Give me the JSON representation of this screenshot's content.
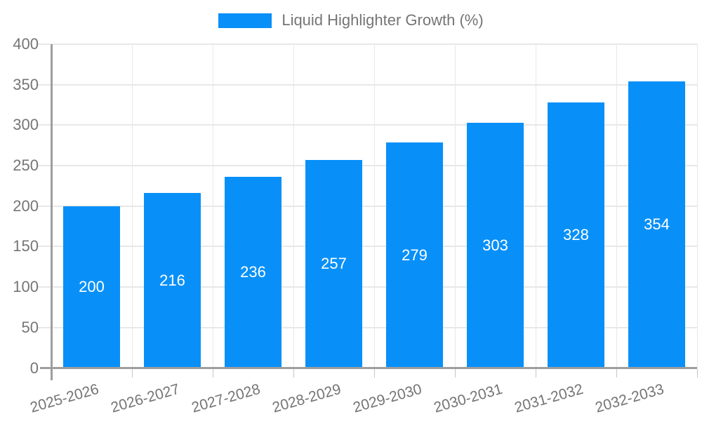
{
  "chart_data": {
    "type": "bar",
    "title": "",
    "legend": {
      "position": "top",
      "label": "Liquid Highlighter Growth (%)"
    },
    "categories": [
      "2025-2026",
      "2026-2027",
      "2027-2028",
      "2028-2029",
      "2029-2030",
      "2030-2031",
      "2031-2032",
      "2032-2033"
    ],
    "series": [
      {
        "name": "Liquid Highlighter Growth (%)",
        "values": [
          200,
          216,
          236,
          257,
          279,
          303,
          328,
          354
        ],
        "color": "#0890f8"
      }
    ],
    "xlabel": "",
    "ylabel": "",
    "ylim": [
      0,
      400
    ],
    "yticks": [
      0,
      50,
      100,
      150,
      200,
      250,
      300,
      350,
      400
    ],
    "grid": true,
    "value_labels_position": "inside-center",
    "value_label_color": "#ffffff"
  },
  "style": {
    "background": "#ffffff",
    "axis_color": "#9e9e9e",
    "grid_color": "#e8e8e8",
    "minor_tick_color": "#c6c6c6",
    "tick_label_color": "#757575"
  }
}
